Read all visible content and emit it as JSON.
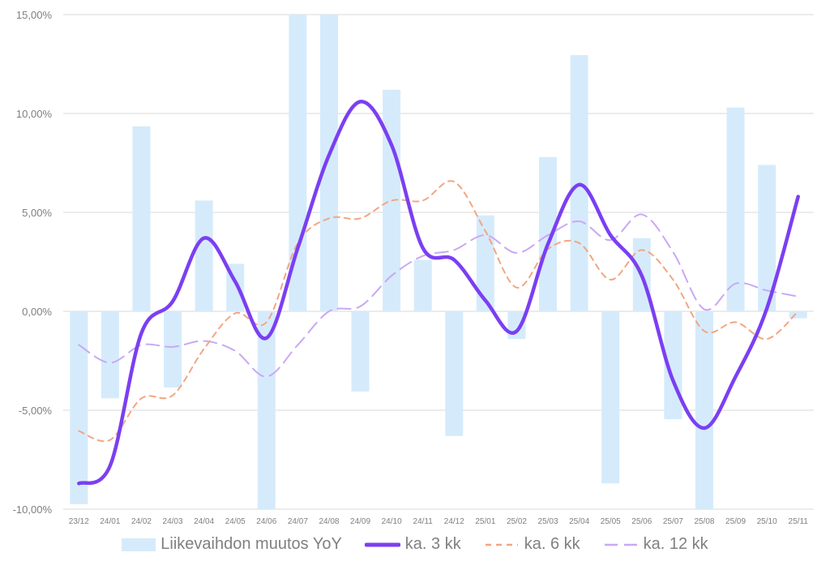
{
  "chart_data": {
    "type": "bar",
    "categories": [
      "23/12",
      "24/01",
      "24/02",
      "24/03",
      "24/04",
      "24/05",
      "24/06",
      "24/07",
      "24/08",
      "24/09",
      "24/10",
      "24/11",
      "24/12",
      "25/01",
      "25/02",
      "25/03",
      "25/04",
      "25/05",
      "25/06",
      "25/07",
      "25/08",
      "25/09",
      "25/10",
      "25/11"
    ],
    "ylim": [
      -10,
      15
    ],
    "yticks": [
      -10,
      -5,
      0,
      5,
      10,
      15
    ],
    "ytick_labels": [
      "-10,00%",
      "-5,00%",
      "0,00%",
      "5,00%",
      "10,00%",
      "15,00%"
    ],
    "grid": true,
    "legend_position": "bottom",
    "series": [
      {
        "name": "Liikevaihdon muutos YoY",
        "kind": "bar",
        "color": "#d5ebfb",
        "values": [
          -9.75,
          -4.4,
          9.35,
          -3.85,
          5.6,
          2.4,
          -10.8,
          16,
          16.5,
          -4.05,
          11.2,
          2.6,
          -6.3,
          4.85,
          -1.4,
          7.8,
          12.95,
          -8.7,
          3.7,
          -5.45,
          -10.5,
          10.3,
          7.4,
          -0.35
        ]
      },
      {
        "name": "ka. 3 kk",
        "kind": "line",
        "style": "solid",
        "color": "#7b3ff2",
        "values": [
          -8.7,
          -7.8,
          -1.1,
          0.5,
          3.7,
          1.5,
          -1.35,
          3.2,
          7.9,
          10.6,
          8.4,
          3.2,
          2.6,
          0.55,
          -1.0,
          3.4,
          6.4,
          3.85,
          1.8,
          -3.5,
          -5.9,
          -3.3,
          0.15,
          5.8
        ]
      },
      {
        "name": "ka. 6 kk",
        "kind": "line",
        "style": "dashed",
        "color": "#f4a582",
        "values": [
          -6.05,
          -6.5,
          -4.4,
          -4.25,
          -1.9,
          -0.1,
          -0.55,
          3.45,
          4.7,
          4.7,
          5.6,
          5.6,
          6.55,
          4.05,
          1.2,
          3.15,
          3.45,
          1.6,
          3.1,
          1.6,
          -1.0,
          -0.55,
          -1.4,
          0.0
        ]
      },
      {
        "name": "ka. 12 kk",
        "kind": "line",
        "style": "longdash",
        "color": "#c9a8f5",
        "values": [
          -1.7,
          -2.6,
          -1.7,
          -1.8,
          -1.5,
          -2.0,
          -3.3,
          -1.7,
          0.0,
          0.25,
          1.8,
          2.8,
          3.1,
          3.85,
          2.95,
          3.85,
          4.55,
          3.6,
          4.9,
          3.0,
          0.1,
          1.4,
          1.05,
          0.75
        ]
      }
    ]
  }
}
